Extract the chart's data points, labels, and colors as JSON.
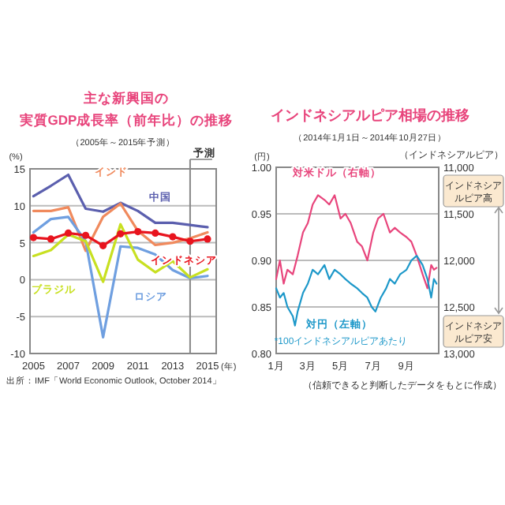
{
  "chart_data": [
    {
      "type": "line",
      "title": "主な新興国の実質GDP成長率（前年比）の推移",
      "subtitle": "（2005年～2015年予測）",
      "xlabel": "(年)",
      "ylabel": "(%)",
      "x": [
        2005,
        2006,
        2007,
        2008,
        2009,
        2010,
        2011,
        2012,
        2013,
        2014,
        2015
      ],
      "series": [
        {
          "name": "中国",
          "color": "#5b5fae",
          "values": [
            11.3,
            12.7,
            14.2,
            9.6,
            9.2,
            10.4,
            9.3,
            7.7,
            7.7,
            7.4,
            7.1
          ]
        },
        {
          "name": "インド",
          "color": "#f08a5d",
          "values": [
            9.3,
            9.3,
            9.8,
            3.9,
            8.5,
            10.3,
            6.6,
            4.7,
            5.0,
            5.6,
            6.4
          ]
        },
        {
          "name": "ロシア",
          "color": "#6f9fe0",
          "values": [
            6.4,
            8.2,
            8.5,
            5.2,
            -7.8,
            4.5,
            4.3,
            3.4,
            1.3,
            0.2,
            0.5
          ]
        },
        {
          "name": "ブラジル",
          "color": "#c8e021",
          "values": [
            3.2,
            4.0,
            6.1,
            5.2,
            -0.3,
            7.5,
            2.7,
            1.0,
            2.5,
            0.3,
            1.4
          ]
        },
        {
          "name": "インドネシア",
          "color": "#e8141e",
          "marker": "circle",
          "values": [
            5.7,
            5.5,
            6.3,
            6.0,
            4.6,
            6.2,
            6.5,
            6.3,
            5.8,
            5.2,
            5.5
          ]
        }
      ],
      "xlim": [
        2004.8,
        2015.5
      ],
      "ylim": [
        -10,
        15
      ],
      "xticks": [
        2005,
        2007,
        2009,
        2011,
        2013,
        2015
      ],
      "yticks": [
        -10,
        -5,
        0,
        5,
        10,
        15
      ],
      "grid": "y",
      "ref_lines": [
        {
          "axis": "x",
          "value": 2014,
          "label": "予測",
          "color": "#888888"
        }
      ],
      "annotations": [
        "出所：IMF「World Economic Outlook, October 2014」"
      ]
    },
    {
      "type": "line",
      "title": "インドネシアルピア相場の推移",
      "subtitle": "（2014年1月1日～2014年10月27日）",
      "ylabel": "(円)",
      "y2label": "（インドネシアルピア）",
      "series": [
        {
          "name": "対米ドル（右軸）",
          "color": "#e8457c",
          "axis": "y2",
          "x": [
            "2014-01-01",
            "2014-01-08",
            "2014-01-15",
            "2014-01-22",
            "2014-02-01",
            "2014-02-10",
            "2014-02-20",
            "2014-03-01",
            "2014-03-10",
            "2014-03-20",
            "2014-04-01",
            "2014-04-10",
            "2014-04-20",
            "2014-05-01",
            "2014-05-10",
            "2014-05-20",
            "2014-06-01",
            "2014-06-10",
            "2014-06-20",
            "2014-07-01",
            "2014-07-10",
            "2014-07-20",
            "2014-08-01",
            "2014-08-10",
            "2014-08-20",
            "2014-09-01",
            "2014-09-10",
            "2014-09-20",
            "2014-10-01",
            "2014-10-10",
            "2014-10-17",
            "2014-10-22",
            "2014-10-27"
          ],
          "values": [
            12200,
            12000,
            12250,
            12100,
            12150,
            11950,
            11700,
            11600,
            11400,
            11300,
            11350,
            11400,
            11300,
            11550,
            11500,
            11600,
            11800,
            11850,
            12000,
            11700,
            11550,
            11500,
            11700,
            11650,
            11700,
            11750,
            11800,
            11950,
            12150,
            12300,
            12050,
            12100,
            12080
          ]
        },
        {
          "name": "対円（左軸）",
          "color": "#1d98c9",
          "x": [
            "2014-01-01",
            "2014-01-08",
            "2014-01-15",
            "2014-01-22",
            "2014-02-01",
            "2014-02-05",
            "2014-02-10",
            "2014-02-20",
            "2014-03-01",
            "2014-03-10",
            "2014-03-20",
            "2014-04-01",
            "2014-04-10",
            "2014-04-20",
            "2014-05-01",
            "2014-05-10",
            "2014-05-20",
            "2014-06-01",
            "2014-06-10",
            "2014-06-20",
            "2014-06-28",
            "2014-07-05",
            "2014-07-15",
            "2014-07-25",
            "2014-08-01",
            "2014-08-10",
            "2014-08-20",
            "2014-09-01",
            "2014-09-10",
            "2014-09-20",
            "2014-10-01",
            "2014-10-10",
            "2014-10-17",
            "2014-10-22",
            "2014-10-27"
          ],
          "values": [
            0.87,
            0.86,
            0.865,
            0.85,
            0.84,
            0.83,
            0.845,
            0.865,
            0.875,
            0.89,
            0.885,
            0.895,
            0.88,
            0.89,
            0.885,
            0.88,
            0.875,
            0.87,
            0.865,
            0.86,
            0.85,
            0.845,
            0.86,
            0.87,
            0.88,
            0.875,
            0.885,
            0.89,
            0.9,
            0.905,
            0.895,
            0.88,
            0.86,
            0.88,
            0.875
          ]
        }
      ],
      "xlim": [
        "2014-01-01",
        "2014-10-31"
      ],
      "xticks": [
        {
          "value": "2014-01-01",
          "label": "1月"
        },
        {
          "value": "2014-03-01",
          "label": "3月"
        },
        {
          "value": "2014-05-01",
          "label": "5月"
        },
        {
          "value": "2014-07-01",
          "label": "7月"
        },
        {
          "value": "2014-09-01",
          "label": "9月"
        }
      ],
      "ylim": [
        0.8,
        1.0
      ],
      "yticks": [
        {
          "value": 0.8,
          "label": "0.80"
        },
        {
          "value": 0.85,
          "label": "0.85"
        },
        {
          "value": 0.9,
          "label": "0.90"
        },
        {
          "value": 0.95,
          "label": "0.95"
        },
        {
          "value": 1.0,
          "label": "1.00"
        }
      ],
      "y2lim": [
        13000,
        11000
      ],
      "y2ticks": [
        {
          "value": 11000,
          "label": "11,000"
        },
        {
          "value": 11500,
          "label": "11,500"
        },
        {
          "value": 12000,
          "label": "12,000"
        },
        {
          "value": 12500,
          "label": "12,500"
        },
        {
          "value": 13000,
          "label": "13,000"
        }
      ],
      "grid": "y",
      "annotations": [
        "*100インドネシアルピアあたり",
        "インドネシアルピア高",
        "インドネシアルピア安",
        "（信頼できると判断したデータをもとに作成）"
      ]
    }
  ]
}
